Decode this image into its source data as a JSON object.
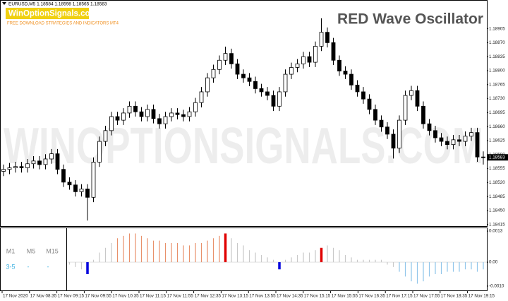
{
  "chart_data": [
    {
      "type": "candlestick",
      "symbol": "EURUSD,M5",
      "open": [
        1.18548,
        1.18553,
        1.18557,
        1.1856,
        1.18557,
        1.18567,
        1.18574,
        1.18565,
        1.18579,
        1.18592,
        1.18553,
        1.18521,
        1.18514,
        1.18497,
        1.18504,
        1.18483,
        1.18571,
        1.18623,
        1.1865,
        1.18685,
        1.18676,
        1.18694,
        1.18711,
        1.18697,
        1.18685,
        1.18703,
        1.1868,
        1.18667,
        1.18685,
        1.18694,
        1.1869,
        1.18685,
        1.18697,
        1.1872,
        1.18747,
        1.18782,
        1.18803,
        1.18826,
        1.18843,
        1.18817,
        1.18791,
        1.18782,
        1.18773,
        1.18755,
        1.18747,
        1.18738,
        1.18711,
        1.18747,
        1.18791,
        1.18808,
        1.18817,
        1.18835,
        1.18821,
        1.18861,
        1.18896,
        1.1887,
        1.18826,
        1.18799,
        1.18791,
        1.18764,
        1.18747,
        1.18729,
        1.18703,
        1.18676,
        1.18659,
        1.18641,
        1.18606,
        1.18676,
        1.18738,
        1.1875,
        1.18711,
        1.18667,
        1.1865,
        1.18632,
        1.18623,
        1.18615,
        1.18627,
        1.18623,
        1.18636,
        1.18645,
        1.18584
      ],
      "high": [
        1.18565,
        1.18569,
        1.18572,
        1.18572,
        1.18579,
        1.18586,
        1.18586,
        1.18591,
        1.18604,
        1.18604,
        1.18565,
        1.18533,
        1.18526,
        1.18516,
        1.18516,
        1.18583,
        1.18635,
        1.18662,
        1.18697,
        1.18697,
        1.18706,
        1.18723,
        1.18723,
        1.18709,
        1.18715,
        1.18715,
        1.18692,
        1.18697,
        1.18706,
        1.18706,
        1.18702,
        1.18709,
        1.18732,
        1.18759,
        1.18794,
        1.18815,
        1.18838,
        1.1886,
        1.18855,
        1.18829,
        1.18803,
        1.18794,
        1.18785,
        1.18767,
        1.18759,
        1.1875,
        1.18759,
        1.18803,
        1.1882,
        1.18829,
        1.18847,
        1.18847,
        1.18873,
        1.18931,
        1.18908,
        1.18882,
        1.18838,
        1.18811,
        1.18803,
        1.18776,
        1.18759,
        1.18741,
        1.18715,
        1.18688,
        1.18671,
        1.18653,
        1.18688,
        1.1875,
        1.18762,
        1.18762,
        1.18723,
        1.18679,
        1.18662,
        1.18644,
        1.18635,
        1.18639,
        1.18639,
        1.18648,
        1.18657,
        1.18657,
        1.18598
      ],
      "low": [
        1.18536,
        1.18541,
        1.18545,
        1.18545,
        1.18545,
        1.18555,
        1.18553,
        1.18553,
        1.18567,
        1.18541,
        1.18509,
        1.18502,
        1.18485,
        1.18485,
        1.18425,
        1.18471,
        1.18559,
        1.18611,
        1.18638,
        1.18664,
        1.18664,
        1.18682,
        1.18685,
        1.18673,
        1.18673,
        1.18668,
        1.18655,
        1.18655,
        1.18673,
        1.18678,
        1.18673,
        1.18673,
        1.18685,
        1.18708,
        1.18735,
        1.1877,
        1.18791,
        1.18814,
        1.18805,
        1.18779,
        1.1877,
        1.18761,
        1.18743,
        1.18735,
        1.18726,
        1.18699,
        1.18699,
        1.18735,
        1.18779,
        1.18796,
        1.18805,
        1.18809,
        1.18809,
        1.18849,
        1.18858,
        1.18814,
        1.18787,
        1.18779,
        1.18752,
        1.18735,
        1.18717,
        1.18691,
        1.18664,
        1.18647,
        1.18629,
        1.1858,
        1.18594,
        1.18664,
        1.18726,
        1.18699,
        1.18655,
        1.18638,
        1.1862,
        1.18611,
        1.18603,
        1.18603,
        1.18611,
        1.18611,
        1.18624,
        1.18572,
        1.18565
      ],
      "close": [
        1.18553,
        1.18557,
        1.1856,
        1.18557,
        1.18567,
        1.18574,
        1.18565,
        1.18579,
        1.18592,
        1.18553,
        1.18521,
        1.18514,
        1.18497,
        1.18504,
        1.18483,
        1.18571,
        1.18623,
        1.1865,
        1.18685,
        1.18676,
        1.18694,
        1.18711,
        1.18697,
        1.18685,
        1.18703,
        1.1868,
        1.18667,
        1.18685,
        1.18694,
        1.1869,
        1.18685,
        1.18697,
        1.1872,
        1.18747,
        1.18782,
        1.18803,
        1.18826,
        1.18843,
        1.18817,
        1.18791,
        1.18782,
        1.18773,
        1.18755,
        1.18747,
        1.18738,
        1.18711,
        1.18747,
        1.18791,
        1.18808,
        1.18817,
        1.18835,
        1.18821,
        1.18861,
        1.18896,
        1.1887,
        1.18826,
        1.18799,
        1.18791,
        1.18764,
        1.18747,
        1.18729,
        1.18703,
        1.18676,
        1.18659,
        1.18641,
        1.18606,
        1.18676,
        1.18738,
        1.1875,
        1.18711,
        1.18667,
        1.1865,
        1.18632,
        1.18623,
        1.18615,
        1.18627,
        1.18623,
        1.18636,
        1.18645,
        1.18584,
        1.18583
      ],
      "ylim": [
        1.18411,
        1.18975
      ],
      "yticks": [
        1.18905,
        {
          "value": 1.1887,
          "label": "1.18870"
        },
        1.18835,
        {
          "value": 1.188,
          "label": "1.18800"
        },
        1.18765,
        {
          "value": 1.1873,
          "label": "1.18730"
        },
        1.18695,
        {
          "value": 1.1866,
          "label": "1.18660"
        },
        1.18625,
        {
          "value": 1.1859,
          "label": "1.18590"
        },
        1.18555,
        {
          "value": 1.1852,
          "label": "1.18520"
        },
        1.18485,
        {
          "value": 1.1845,
          "label": "1.18450"
        },
        1.18415
      ],
      "time_labels": [
        "17 Nov 2020",
        "17 Nov 08:35",
        "17 Nov 09:15",
        "17 Nov 09:55",
        "17 Nov 10:35",
        "17 Nov 11:15",
        "17 Nov 11:55",
        "17 Nov 12:35",
        "17 Nov 13:15",
        "17 Nov 13:55",
        "17 Nov 14:35",
        "17 Nov 15:15",
        "17 Nov 15:55",
        "17 Nov 16:35",
        "17 Nov 17:15",
        "17 Nov 17:55",
        "17 Nov 18:35",
        "17 Nov 19:15"
      ]
    },
    {
      "type": "bar",
      "values": [
        null,
        null,
        null,
        null,
        null,
        null,
        null,
        null,
        null,
        null,
        null,
        -0.0001,
        -0.0002,
        -0.0003,
        -0.0005,
        0.0001,
        0.0004,
        0.0006,
        0.0008,
        0.001,
        0.0011,
        0.0012,
        0.0012,
        0.0011,
        0.001,
        0.0009,
        0.0009,
        0.0008,
        0.0008,
        0.0008,
        0.0007,
        0.0007,
        0.0008,
        0.0008,
        0.0009,
        0.001,
        0.0011,
        0.0012,
        0.001,
        0.0008,
        0.0007,
        0.0005,
        0.0004,
        0.0003,
        0.0002,
        0.0001,
        -0.0003,
        0.0001,
        0.0002,
        0.0003,
        0.0004,
        0.0004,
        0.0005,
        0.0006,
        0.0007,
        0.0006,
        0.0005,
        0.0003,
        0.0002,
        0.0001,
        0.0001,
        0.0001,
        0.0001,
        0.0001,
        -0.0001,
        -0.0002,
        -0.0004,
        -0.0006,
        -0.0008,
        -0.0009,
        -0.0008,
        -0.0006,
        -0.0005,
        -0.0005,
        -0.0004,
        -0.0004,
        -0.0004,
        -0.0003,
        -0.0003,
        -0.0004,
        -0.0003
      ],
      "palette": [
        "#c8c8c8",
        "#e8906a",
        "#e00000",
        "#0000dd",
        "#8ec4ea"
      ],
      "color_index": [
        null,
        null,
        null,
        null,
        null,
        null,
        null,
        null,
        null,
        null,
        null,
        0,
        0,
        0,
        3,
        0,
        0,
        0,
        0,
        1,
        1,
        1,
        1,
        1,
        1,
        1,
        1,
        1,
        1,
        1,
        1,
        1,
        1,
        1,
        1,
        1,
        1,
        2,
        0,
        0,
        0,
        0,
        0,
        0,
        0,
        0,
        3,
        0,
        0,
        0,
        0,
        0,
        0,
        2,
        0,
        0,
        0,
        0,
        0,
        0,
        0,
        0,
        0,
        0,
        0,
        0,
        4,
        4,
        4,
        4,
        4,
        4,
        4,
        4,
        4,
        4,
        4,
        4,
        4,
        4,
        4
      ],
      "ylim": [
        -0.00118,
        0.00142
      ],
      "yticks": [
        0.0013,
        {
          "value": 0,
          "label": "0.00"
        },
        {
          "value": -0.001,
          "label": "-0.0010"
        }
      ]
    }
  ],
  "branding": {
    "logo": "WinOptionSignals.com",
    "tagline": "FREE DOWNLOAD STRATEGIES AND INDICATORS MT4",
    "title": "RED Wave Oscillator",
    "watermark": "WINOPTIONSIGNALS.COM"
  },
  "timeframe_panel": {
    "headers": [
      "M1",
      "M5",
      "M15"
    ],
    "values": [
      "3-5",
      "-",
      "-"
    ]
  }
}
